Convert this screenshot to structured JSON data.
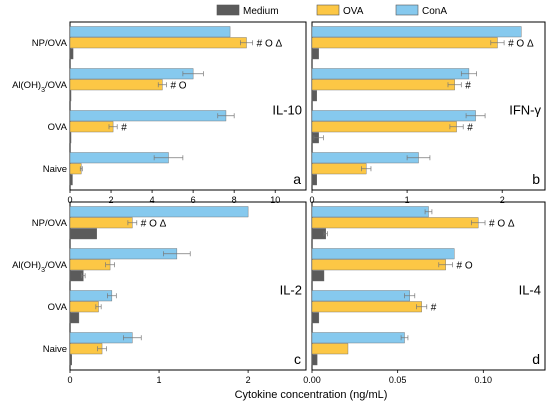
{
  "legend": [
    {
      "name": "Medium",
      "color": "#5b5b5b"
    },
    {
      "name": "OVA",
      "color": "#fcc745"
    },
    {
      "name": "ConA",
      "color": "#86c9ee"
    }
  ],
  "x_axis_title": "Cytokine concentration (ng/mL)",
  "chart_data": [
    {
      "type": "bar",
      "orientation": "horizontal",
      "panel": "a",
      "cytokine": "IL-10",
      "categories": [
        "NP/OVA",
        "Al(OH)3/OVA",
        "OVA",
        "Naive"
      ],
      "category_labels": true,
      "xlim": [
        0,
        11.5
      ],
      "xticks": [
        0,
        2,
        4,
        6,
        8,
        10
      ],
      "xtick_labels": [
        "0",
        "2",
        "4",
        "6",
        "8",
        "10"
      ],
      "series": [
        {
          "name": "ConA",
          "values": [
            7.8,
            6.0,
            7.6,
            4.8
          ],
          "errors": [
            0,
            0.5,
            0.4,
            0.7
          ]
        },
        {
          "name": "OVA",
          "values": [
            8.6,
            4.5,
            2.1,
            0.55
          ],
          "errors": [
            0.3,
            0.2,
            0.2,
            0.05
          ]
        },
        {
          "name": "Medium",
          "values": [
            0.15,
            0.05,
            0.05,
            0.12
          ],
          "errors": [
            0,
            0,
            0,
            0
          ]
        }
      ],
      "significance": [
        "# O Δ",
        "# O",
        "#",
        ""
      ]
    },
    {
      "type": "bar",
      "orientation": "horizontal",
      "panel": "b",
      "cytokine": "IFN-γ",
      "categories": [
        "NP/OVA",
        "Al(OH)3/OVA",
        "OVA",
        "Naive"
      ],
      "category_labels": false,
      "xlim": [
        0,
        2.45
      ],
      "xticks": [
        0,
        1,
        2
      ],
      "xtick_labels": [
        "0",
        "1",
        "2"
      ],
      "series": [
        {
          "name": "ConA",
          "values": [
            2.2,
            1.65,
            1.72,
            1.12
          ],
          "errors": [
            0,
            0.08,
            0.1,
            0.12
          ]
        },
        {
          "name": "OVA",
          "values": [
            1.95,
            1.5,
            1.52,
            0.57
          ],
          "errors": [
            0.07,
            0.07,
            0.07,
            0.05
          ]
        },
        {
          "name": "Medium",
          "values": [
            0.07,
            0.05,
            0.07,
            0.05
          ],
          "errors": [
            0,
            0,
            0.05,
            0
          ]
        }
      ],
      "significance": [
        "# O Δ",
        "#",
        "#",
        ""
      ]
    },
    {
      "type": "bar",
      "orientation": "horizontal",
      "panel": "c",
      "cytokine": "IL-2",
      "categories": [
        "NP/OVA",
        "Al(OH)3/OVA",
        "OVA",
        "Naive"
      ],
      "category_labels": true,
      "xlim": [
        0,
        2.65
      ],
      "xticks": [
        0,
        1,
        2
      ],
      "xtick_labels": [
        "0",
        "1",
        "2"
      ],
      "series": [
        {
          "name": "ConA",
          "values": [
            2.0,
            1.2,
            0.47,
            0.7
          ],
          "errors": [
            0,
            0.15,
            0.05,
            0.1
          ]
        },
        {
          "name": "OVA",
          "values": [
            0.7,
            0.45,
            0.32,
            0.36
          ],
          "errors": [
            0.05,
            0.05,
            0.03,
            0.05
          ]
        },
        {
          "name": "Medium",
          "values": [
            0.3,
            0.15,
            0.1,
            0.02
          ],
          "errors": [
            0,
            0.02,
            0,
            0
          ]
        }
      ],
      "significance": [
        "# O Δ",
        "",
        "",
        ""
      ]
    },
    {
      "type": "bar",
      "orientation": "horizontal",
      "panel": "d",
      "cytokine": "IL-4",
      "categories": [
        "NP/OVA",
        "Al(OH)3/OVA",
        "OVA",
        "Naive"
      ],
      "category_labels": false,
      "xlim": [
        0,
        0.136
      ],
      "xticks": [
        0,
        0.05,
        0.1
      ],
      "xtick_labels": [
        "0.00",
        "0.05",
        "0.10"
      ],
      "series": [
        {
          "name": "ConA",
          "values": [
            0.068,
            0.083,
            0.057,
            0.054
          ],
          "errors": [
            0.002,
            0,
            0.003,
            0.002
          ]
        },
        {
          "name": "OVA",
          "values": [
            0.097,
            0.078,
            0.064,
            0.021
          ],
          "errors": [
            0.004,
            0.004,
            0.003,
            0
          ]
        },
        {
          "name": "Medium",
          "values": [
            0.008,
            0.007,
            0.004,
            0.003
          ],
          "errors": [
            0.001,
            0,
            0,
            0
          ]
        }
      ],
      "significance": [
        "# O Δ",
        "# O",
        "#",
        ""
      ]
    }
  ]
}
